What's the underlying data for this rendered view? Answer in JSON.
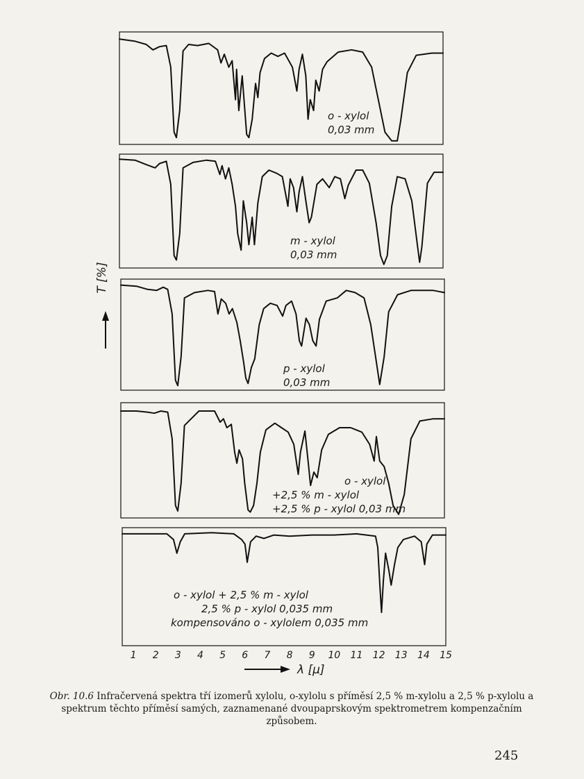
{
  "chart_data": {
    "type": "line",
    "title": "",
    "xlabel": "λ [μ]",
    "ylabel": "T [%]",
    "xlim": [
      0.5,
      15
    ],
    "x_ticks": [
      "1",
      "2",
      "3",
      "4",
      "5",
      "6",
      "7",
      "8",
      "9",
      "10",
      "11",
      "12",
      "13",
      "14",
      "15"
    ],
    "panels": [
      {
        "label_lines": [
          "o - xylol",
          "0,03 mm"
        ],
        "points": [
          [
            0.5,
            96
          ],
          [
            1.2,
            94
          ],
          [
            1.7,
            91
          ],
          [
            2.0,
            86
          ],
          [
            2.3,
            89
          ],
          [
            2.6,
            90
          ],
          [
            2.8,
            70
          ],
          [
            2.95,
            10
          ],
          [
            3.05,
            5
          ],
          [
            3.2,
            30
          ],
          [
            3.35,
            85
          ],
          [
            3.6,
            91
          ],
          [
            4.0,
            90
          ],
          [
            4.5,
            92
          ],
          [
            4.9,
            86
          ],
          [
            5.05,
            74
          ],
          [
            5.2,
            82
          ],
          [
            5.4,
            70
          ],
          [
            5.55,
            76
          ],
          [
            5.7,
            40
          ],
          [
            5.75,
            68
          ],
          [
            5.85,
            30
          ],
          [
            6.0,
            62
          ],
          [
            6.1,
            35
          ],
          [
            6.2,
            8
          ],
          [
            6.3,
            5
          ],
          [
            6.45,
            22
          ],
          [
            6.6,
            55
          ],
          [
            6.7,
            42
          ],
          [
            6.8,
            65
          ],
          [
            7.0,
            78
          ],
          [
            7.3,
            83
          ],
          [
            7.6,
            80
          ],
          [
            7.9,
            83
          ],
          [
            8.25,
            70
          ],
          [
            8.45,
            48
          ],
          [
            8.55,
            68
          ],
          [
            8.7,
            82
          ],
          [
            8.85,
            62
          ],
          [
            8.95,
            22
          ],
          [
            9.05,
            40
          ],
          [
            9.2,
            30
          ],
          [
            9.3,
            58
          ],
          [
            9.45,
            48
          ],
          [
            9.6,
            68
          ],
          [
            9.8,
            75
          ],
          [
            10.3,
            84
          ],
          [
            10.9,
            86
          ],
          [
            11.4,
            84
          ],
          [
            11.8,
            70
          ],
          [
            12.1,
            40
          ],
          [
            12.4,
            10
          ],
          [
            12.7,
            2
          ],
          [
            12.95,
            2
          ],
          [
            13.1,
            20
          ],
          [
            13.4,
            65
          ],
          [
            13.8,
            81
          ],
          [
            14.5,
            83
          ],
          [
            15,
            83
          ]
        ]
      },
      {
        "label_lines": [
          "m - xylol",
          "0,03 mm"
        ],
        "points": [
          [
            0.5,
            98
          ],
          [
            1.2,
            97
          ],
          [
            1.7,
            93
          ],
          [
            2.1,
            90
          ],
          [
            2.3,
            94
          ],
          [
            2.6,
            96
          ],
          [
            2.8,
            75
          ],
          [
            2.95,
            10
          ],
          [
            3.05,
            6
          ],
          [
            3.2,
            30
          ],
          [
            3.35,
            90
          ],
          [
            3.8,
            95
          ],
          [
            4.4,
            97
          ],
          [
            4.8,
            96
          ],
          [
            5.0,
            84
          ],
          [
            5.1,
            92
          ],
          [
            5.25,
            80
          ],
          [
            5.4,
            90
          ],
          [
            5.55,
            75
          ],
          [
            5.7,
            55
          ],
          [
            5.8,
            30
          ],
          [
            5.95,
            15
          ],
          [
            6.05,
            60
          ],
          [
            6.2,
            40
          ],
          [
            6.3,
            20
          ],
          [
            6.45,
            45
          ],
          [
            6.55,
            20
          ],
          [
            6.7,
            58
          ],
          [
            6.9,
            82
          ],
          [
            7.2,
            88
          ],
          [
            7.55,
            85
          ],
          [
            7.8,
            82
          ],
          [
            8.05,
            55
          ],
          [
            8.15,
            80
          ],
          [
            8.3,
            72
          ],
          [
            8.45,
            50
          ],
          [
            8.55,
            68
          ],
          [
            8.7,
            82
          ],
          [
            8.85,
            60
          ],
          [
            9.0,
            40
          ],
          [
            9.1,
            45
          ],
          [
            9.35,
            75
          ],
          [
            9.6,
            80
          ],
          [
            9.9,
            72
          ],
          [
            10.15,
            82
          ],
          [
            10.4,
            80
          ],
          [
            10.6,
            62
          ],
          [
            10.75,
            74
          ],
          [
            10.9,
            80
          ],
          [
            11.1,
            88
          ],
          [
            11.4,
            88
          ],
          [
            11.7,
            76
          ],
          [
            12.0,
            40
          ],
          [
            12.2,
            10
          ],
          [
            12.35,
            2
          ],
          [
            12.5,
            10
          ],
          [
            12.7,
            55
          ],
          [
            12.95,
            82
          ],
          [
            13.3,
            80
          ],
          [
            13.6,
            60
          ],
          [
            13.85,
            20
          ],
          [
            13.95,
            4
          ],
          [
            14.05,
            18
          ],
          [
            14.3,
            76
          ],
          [
            14.6,
            86
          ],
          [
            15,
            86
          ]
        ]
      },
      {
        "label_lines": [
          "p - xylol",
          "0,03 mm"
        ],
        "points": [
          [
            0.5,
            97
          ],
          [
            1.2,
            96
          ],
          [
            1.7,
            93
          ],
          [
            2.1,
            92
          ],
          [
            2.4,
            95
          ],
          [
            2.6,
            93
          ],
          [
            2.8,
            70
          ],
          [
            2.95,
            8
          ],
          [
            3.05,
            3
          ],
          [
            3.2,
            30
          ],
          [
            3.35,
            85
          ],
          [
            3.8,
            90
          ],
          [
            4.4,
            92
          ],
          [
            4.7,
            91
          ],
          [
            4.85,
            70
          ],
          [
            5.0,
            84
          ],
          [
            5.2,
            80
          ],
          [
            5.35,
            70
          ],
          [
            5.5,
            75
          ],
          [
            5.7,
            62
          ],
          [
            5.85,
            45
          ],
          [
            6.0,
            25
          ],
          [
            6.1,
            10
          ],
          [
            6.2,
            5
          ],
          [
            6.35,
            20
          ],
          [
            6.5,
            28
          ],
          [
            6.7,
            60
          ],
          [
            6.9,
            75
          ],
          [
            7.2,
            80
          ],
          [
            7.5,
            78
          ],
          [
            7.75,
            68
          ],
          [
            7.9,
            78
          ],
          [
            8.15,
            82
          ],
          [
            8.35,
            70
          ],
          [
            8.5,
            45
          ],
          [
            8.6,
            40
          ],
          [
            8.8,
            66
          ],
          [
            8.95,
            60
          ],
          [
            9.1,
            45
          ],
          [
            9.25,
            40
          ],
          [
            9.4,
            65
          ],
          [
            9.7,
            82
          ],
          [
            10.2,
            85
          ],
          [
            10.6,
            92
          ],
          [
            11.0,
            90
          ],
          [
            11.4,
            85
          ],
          [
            11.7,
            60
          ],
          [
            11.95,
            25
          ],
          [
            12.1,
            4
          ],
          [
            12.3,
            30
          ],
          [
            12.5,
            72
          ],
          [
            12.9,
            88
          ],
          [
            13.5,
            92
          ],
          [
            14.5,
            92
          ],
          [
            15,
            90
          ]
        ]
      },
      {
        "label_lines": [
          "o - xylol",
          "+2,5 % m - xylol",
          "+2,5 % p - xylol  0,03 mm"
        ],
        "points": [
          [
            0.5,
            95
          ],
          [
            1.2,
            95
          ],
          [
            1.7,
            94
          ],
          [
            2.0,
            93
          ],
          [
            2.3,
            95
          ],
          [
            2.6,
            94
          ],
          [
            2.8,
            70
          ],
          [
            2.95,
            10
          ],
          [
            3.05,
            5
          ],
          [
            3.2,
            30
          ],
          [
            3.35,
            82
          ],
          [
            3.6,
            87
          ],
          [
            4.0,
            95
          ],
          [
            4.7,
            95
          ],
          [
            4.95,
            85
          ],
          [
            5.1,
            88
          ],
          [
            5.25,
            80
          ],
          [
            5.45,
            83
          ],
          [
            5.6,
            58
          ],
          [
            5.7,
            48
          ],
          [
            5.8,
            60
          ],
          [
            5.95,
            52
          ],
          [
            6.05,
            30
          ],
          [
            6.2,
            6
          ],
          [
            6.3,
            4
          ],
          [
            6.45,
            10
          ],
          [
            6.6,
            30
          ],
          [
            6.75,
            58
          ],
          [
            7.0,
            78
          ],
          [
            7.4,
            84
          ],
          [
            7.7,
            80
          ],
          [
            8.0,
            76
          ],
          [
            8.25,
            65
          ],
          [
            8.45,
            38
          ],
          [
            8.55,
            58
          ],
          [
            8.75,
            77
          ],
          [
            8.9,
            48
          ],
          [
            9.0,
            28
          ],
          [
            9.15,
            40
          ],
          [
            9.3,
            35
          ],
          [
            9.5,
            60
          ],
          [
            9.8,
            74
          ],
          [
            10.3,
            80
          ],
          [
            10.8,
            80
          ],
          [
            11.3,
            76
          ],
          [
            11.65,
            65
          ],
          [
            11.85,
            50
          ],
          [
            11.95,
            72
          ],
          [
            12.1,
            50
          ],
          [
            12.3,
            45
          ],
          [
            12.5,
            30
          ],
          [
            12.7,
            10
          ],
          [
            12.95,
            2
          ],
          [
            13.2,
            20
          ],
          [
            13.5,
            70
          ],
          [
            13.9,
            86
          ],
          [
            14.5,
            88
          ],
          [
            15,
            88
          ]
        ]
      },
      {
        "label_lines": [
          "o - xylol + 2,5 % m - xylol",
          "2,5 % p - xylol  0,035 mm",
          "kompensováno  o - xylolem  0,035 mm"
        ],
        "points": [
          [
            0.5,
            97
          ],
          [
            1.5,
            97
          ],
          [
            2.5,
            97
          ],
          [
            2.8,
            92
          ],
          [
            2.95,
            80
          ],
          [
            3.1,
            90
          ],
          [
            3.3,
            97
          ],
          [
            4.5,
            98
          ],
          [
            5.5,
            97
          ],
          [
            5.85,
            92
          ],
          [
            6.0,
            88
          ],
          [
            6.1,
            72
          ],
          [
            6.25,
            90
          ],
          [
            6.5,
            95
          ],
          [
            6.85,
            93
          ],
          [
            7.3,
            96
          ],
          [
            8.0,
            95
          ],
          [
            9.0,
            96
          ],
          [
            10.0,
            96
          ],
          [
            11.0,
            97
          ],
          [
            11.85,
            95
          ],
          [
            11.95,
            85
          ],
          [
            12.05,
            50
          ],
          [
            12.12,
            28
          ],
          [
            12.2,
            55
          ],
          [
            12.3,
            80
          ],
          [
            12.45,
            65
          ],
          [
            12.55,
            52
          ],
          [
            12.7,
            70
          ],
          [
            12.85,
            85
          ],
          [
            13.1,
            92
          ],
          [
            13.6,
            95
          ],
          [
            13.9,
            90
          ],
          [
            14.05,
            70
          ],
          [
            14.15,
            88
          ],
          [
            14.4,
            96
          ],
          [
            15,
            96
          ]
        ]
      }
    ],
    "grid": false
  },
  "caption": {
    "figure_label": "Obr. 10.6",
    "text": " Infračervená spektra tří izomerů xylolu, o-xylolu s příměsí 2,5 % m-xylolu a 2,5 % p-xylolu a spektrum těchto příměsí samých, zaznamenané dvoupaprskovým spektrometrem kompenzačním způsobem."
  },
  "page_number": "245"
}
